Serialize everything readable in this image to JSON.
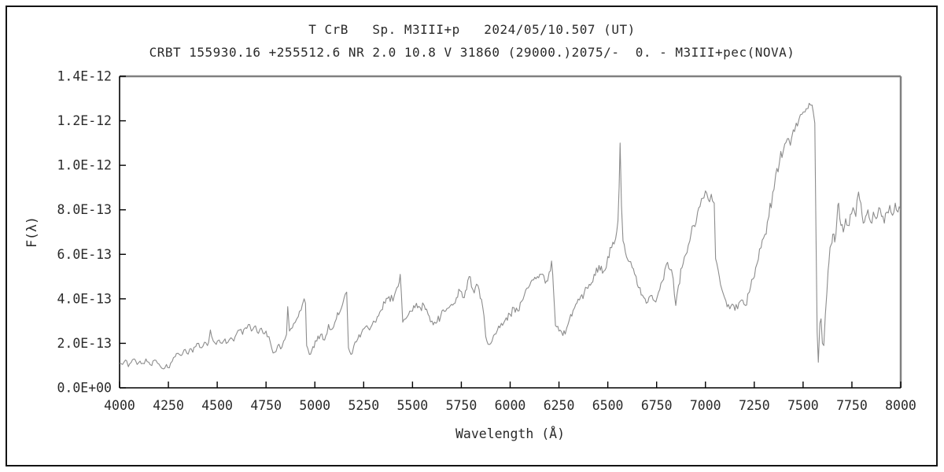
{
  "title_line1": "T CrB   Sp. M3III+p   2024/05/10.507 (UT)",
  "title_line2": "CRBT 155930.16 +255512.6 NR 2.0 10.8 V 31860 (29000.)2075/-  0. - M3III+pec(NOVA)",
  "chart_data": {
    "type": "line",
    "title": "T CrB   Sp. M3III+p   2024/05/10.507 (UT)",
    "subtitle": "CRBT 155930.16 +255512.6 NR 2.0 10.8 V 31860 (29000.)2075/-  0. - M3III+pec(NOVA)",
    "xlabel": "Wavelength (Å)",
    "ylabel": "F(λ)",
    "xlim": [
      4000,
      8000
    ],
    "ylim": [
      0,
      1.4e-12
    ],
    "grid": false,
    "legend": "none",
    "line_color": "#8c8c8c",
    "frame_shadow_color": "#808080",
    "axis_color": "#000000",
    "x_ticks": [
      4000,
      4250,
      4500,
      4750,
      5000,
      5250,
      5500,
      5750,
      6000,
      6250,
      6500,
      6750,
      7000,
      7250,
      7500,
      7750,
      8000
    ],
    "y_ticks": [
      {
        "label": "0.0E+00",
        "value_e13": 0
      },
      {
        "label": "2.0E-13",
        "value_e13": 2
      },
      {
        "label": "4.0E-13",
        "value_e13": 4
      },
      {
        "label": "6.0E-13",
        "value_e13": 6
      },
      {
        "label": "8.0E-13",
        "value_e13": 8
      },
      {
        "label": "1.0E-12",
        "value_e13": 10
      },
      {
        "label": "1.2E-12",
        "value_e13": 12
      },
      {
        "label": "1.4E-12",
        "value_e13": 14
      }
    ],
    "noise_amplitude_e13": 0.1,
    "noise_step_angstrom": 6,
    "series": [
      {
        "name": "spectrum",
        "points_angstrom_flux_e13": [
          [
            4000,
            1.1
          ],
          [
            4015,
            1.05
          ],
          [
            4030,
            1.25
          ],
          [
            4045,
            0.95
          ],
          [
            4060,
            1.15
          ],
          [
            4075,
            1.3
          ],
          [
            4090,
            1.05
          ],
          [
            4105,
            1.2
          ],
          [
            4120,
            1.1
          ],
          [
            4135,
            1.3
          ],
          [
            4150,
            1.15
          ],
          [
            4165,
            1.0
          ],
          [
            4180,
            1.25
          ],
          [
            4195,
            1.1
          ],
          [
            4210,
            0.95
          ],
          [
            4225,
            0.85
          ],
          [
            4240,
            1.05
          ],
          [
            4255,
            0.9
          ],
          [
            4270,
            1.2
          ],
          [
            4285,
            1.4
          ],
          [
            4300,
            1.55
          ],
          [
            4315,
            1.45
          ],
          [
            4330,
            1.7
          ],
          [
            4345,
            1.55
          ],
          [
            4360,
            1.75
          ],
          [
            4375,
            1.6
          ],
          [
            4390,
            1.85
          ],
          [
            4405,
            2.0
          ],
          [
            4420,
            1.8
          ],
          [
            4435,
            2.05
          ],
          [
            4450,
            1.9
          ],
          [
            4465,
            2.6
          ],
          [
            4480,
            2.1
          ],
          [
            4495,
            1.95
          ],
          [
            4510,
            2.15
          ],
          [
            4525,
            2.0
          ],
          [
            4540,
            2.2
          ],
          [
            4555,
            2.05
          ],
          [
            4570,
            2.25
          ],
          [
            4585,
            2.1
          ],
          [
            4600,
            2.45
          ],
          [
            4615,
            2.6
          ],
          [
            4630,
            2.4
          ],
          [
            4645,
            2.7
          ],
          [
            4660,
            2.85
          ],
          [
            4675,
            2.55
          ],
          [
            4690,
            2.75
          ],
          [
            4705,
            2.5
          ],
          [
            4720,
            2.65
          ],
          [
            4735,
            2.45
          ],
          [
            4750,
            2.55
          ],
          [
            4765,
            2.3
          ],
          [
            4780,
            1.75
          ],
          [
            4795,
            1.6
          ],
          [
            4810,
            1.9
          ],
          [
            4825,
            1.75
          ],
          [
            4840,
            2.1
          ],
          [
            4855,
            2.4
          ],
          [
            4861,
            3.65
          ],
          [
            4870,
            2.55
          ],
          [
            4885,
            2.7
          ],
          [
            4900,
            2.95
          ],
          [
            4915,
            3.2
          ],
          [
            4930,
            3.5
          ],
          [
            4945,
            4.0
          ],
          [
            4952,
            3.8
          ],
          [
            4958,
            1.9
          ],
          [
            4972,
            1.5
          ],
          [
            4990,
            1.85
          ],
          [
            5010,
            2.1
          ],
          [
            5030,
            2.4
          ],
          [
            5050,
            2.15
          ],
          [
            5070,
            2.85
          ],
          [
            5090,
            2.65
          ],
          [
            5110,
            3.1
          ],
          [
            5130,
            3.45
          ],
          [
            5150,
            4.05
          ],
          [
            5163,
            4.3
          ],
          [
            5172,
            1.8
          ],
          [
            5185,
            1.5
          ],
          [
            5200,
            1.9
          ],
          [
            5220,
            2.2
          ],
          [
            5240,
            2.5
          ],
          [
            5260,
            2.75
          ],
          [
            5280,
            2.6
          ],
          [
            5300,
            3.0
          ],
          [
            5320,
            3.2
          ],
          [
            5340,
            3.5
          ],
          [
            5360,
            3.8
          ],
          [
            5380,
            4.1
          ],
          [
            5400,
            3.9
          ],
          [
            5420,
            4.5
          ],
          [
            5437,
            5.1
          ],
          [
            5450,
            2.95
          ],
          [
            5465,
            3.1
          ],
          [
            5480,
            3.3
          ],
          [
            5500,
            3.45
          ],
          [
            5520,
            3.8
          ],
          [
            5540,
            3.6
          ],
          [
            5560,
            3.7
          ],
          [
            5580,
            3.3
          ],
          [
            5600,
            3.0
          ],
          [
            5620,
            2.9
          ],
          [
            5645,
            3.25
          ],
          [
            5670,
            3.45
          ],
          [
            5700,
            3.75
          ],
          [
            5725,
            4.05
          ],
          [
            5745,
            4.35
          ],
          [
            5765,
            4.05
          ],
          [
            5790,
            5.0
          ],
          [
            5810,
            4.4
          ],
          [
            5835,
            4.6
          ],
          [
            5860,
            3.6
          ],
          [
            5875,
            2.3
          ],
          [
            5895,
            1.95
          ],
          [
            5915,
            2.35
          ],
          [
            5935,
            2.6
          ],
          [
            5955,
            2.9
          ],
          [
            5980,
            3.15
          ],
          [
            6000,
            3.3
          ],
          [
            6020,
            3.6
          ],
          [
            6040,
            3.45
          ],
          [
            6060,
            3.9
          ],
          [
            6080,
            4.4
          ],
          [
            6100,
            4.6
          ],
          [
            6120,
            4.85
          ],
          [
            6140,
            5.0
          ],
          [
            6160,
            5.1
          ],
          [
            6180,
            4.7
          ],
          [
            6200,
            5.2
          ],
          [
            6212,
            5.7
          ],
          [
            6222,
            4.4
          ],
          [
            6232,
            2.8
          ],
          [
            6250,
            2.55
          ],
          [
            6270,
            2.35
          ],
          [
            6290,
            2.7
          ],
          [
            6310,
            3.3
          ],
          [
            6330,
            3.6
          ],
          [
            6355,
            3.95
          ],
          [
            6380,
            4.3
          ],
          [
            6405,
            4.65
          ],
          [
            6430,
            5.1
          ],
          [
            6455,
            5.5
          ],
          [
            6480,
            5.25
          ],
          [
            6500,
            5.9
          ],
          [
            6520,
            6.3
          ],
          [
            6540,
            6.7
          ],
          [
            6552,
            7.5
          ],
          [
            6558,
            9.0
          ],
          [
            6563,
            11.0
          ],
          [
            6570,
            8.2
          ],
          [
            6578,
            6.6
          ],
          [
            6590,
            6.1
          ],
          [
            6605,
            5.7
          ],
          [
            6625,
            5.4
          ],
          [
            6645,
            5.0
          ],
          [
            6665,
            4.5
          ],
          [
            6685,
            4.05
          ],
          [
            6705,
            3.85
          ],
          [
            6720,
            4.15
          ],
          [
            6740,
            3.9
          ],
          [
            6760,
            4.3
          ],
          [
            6780,
            4.8
          ],
          [
            6800,
            5.55
          ],
          [
            6820,
            5.3
          ],
          [
            6835,
            4.9
          ],
          [
            6848,
            3.7
          ],
          [
            6862,
            4.6
          ],
          [
            6880,
            5.4
          ],
          [
            6900,
            6.0
          ],
          [
            6920,
            6.6
          ],
          [
            6940,
            7.3
          ],
          [
            6960,
            7.9
          ],
          [
            6980,
            8.5
          ],
          [
            7000,
            8.85
          ],
          [
            7015,
            8.45
          ],
          [
            7030,
            8.7
          ],
          [
            7045,
            8.3
          ],
          [
            7052,
            5.8
          ],
          [
            7065,
            5.3
          ],
          [
            7085,
            4.4
          ],
          [
            7105,
            3.9
          ],
          [
            7125,
            3.55
          ],
          [
            7145,
            3.7
          ],
          [
            7165,
            3.55
          ],
          [
            7185,
            3.95
          ],
          [
            7205,
            3.7
          ],
          [
            7225,
            4.3
          ],
          [
            7245,
            4.9
          ],
          [
            7265,
            5.6
          ],
          [
            7285,
            6.3
          ],
          [
            7305,
            6.9
          ],
          [
            7325,
            7.7
          ],
          [
            7345,
            8.8
          ],
          [
            7360,
            9.6
          ],
          [
            7380,
            10.2
          ],
          [
            7400,
            10.7
          ],
          [
            7420,
            11.2
          ],
          [
            7435,
            10.9
          ],
          [
            7450,
            11.6
          ],
          [
            7465,
            11.9
          ],
          [
            7480,
            12.1
          ],
          [
            7495,
            12.3
          ],
          [
            7510,
            12.4
          ],
          [
            7525,
            12.55
          ],
          [
            7540,
            12.7
          ],
          [
            7552,
            12.4
          ],
          [
            7560,
            11.9
          ],
          [
            7566,
            7.0
          ],
          [
            7572,
            2.5
          ],
          [
            7578,
            1.15
          ],
          [
            7586,
            2.9
          ],
          [
            7592,
            3.1
          ],
          [
            7599,
            2.0
          ],
          [
            7606,
            1.9
          ],
          [
            7614,
            3.3
          ],
          [
            7622,
            4.3
          ],
          [
            7632,
            5.6
          ],
          [
            7642,
            6.4
          ],
          [
            7652,
            6.9
          ],
          [
            7662,
            6.55
          ],
          [
            7672,
            7.4
          ],
          [
            7682,
            8.3
          ],
          [
            7694,
            7.3
          ],
          [
            7706,
            7.0
          ],
          [
            7718,
            7.6
          ],
          [
            7730,
            7.3
          ],
          [
            7742,
            7.8
          ],
          [
            7756,
            8.1
          ],
          [
            7770,
            7.7
          ],
          [
            7784,
            8.8
          ],
          [
            7796,
            8.3
          ],
          [
            7808,
            7.4
          ],
          [
            7820,
            7.7
          ],
          [
            7832,
            8.0
          ],
          [
            7846,
            7.45
          ],
          [
            7860,
            7.9
          ],
          [
            7874,
            7.6
          ],
          [
            7888,
            8.1
          ],
          [
            7902,
            7.7
          ],
          [
            7916,
            7.4
          ],
          [
            7930,
            7.9
          ],
          [
            7944,
            8.2
          ],
          [
            7958,
            7.75
          ],
          [
            7972,
            8.3
          ],
          [
            7986,
            7.9
          ],
          [
            8000,
            8.0
          ]
        ]
      }
    ]
  }
}
